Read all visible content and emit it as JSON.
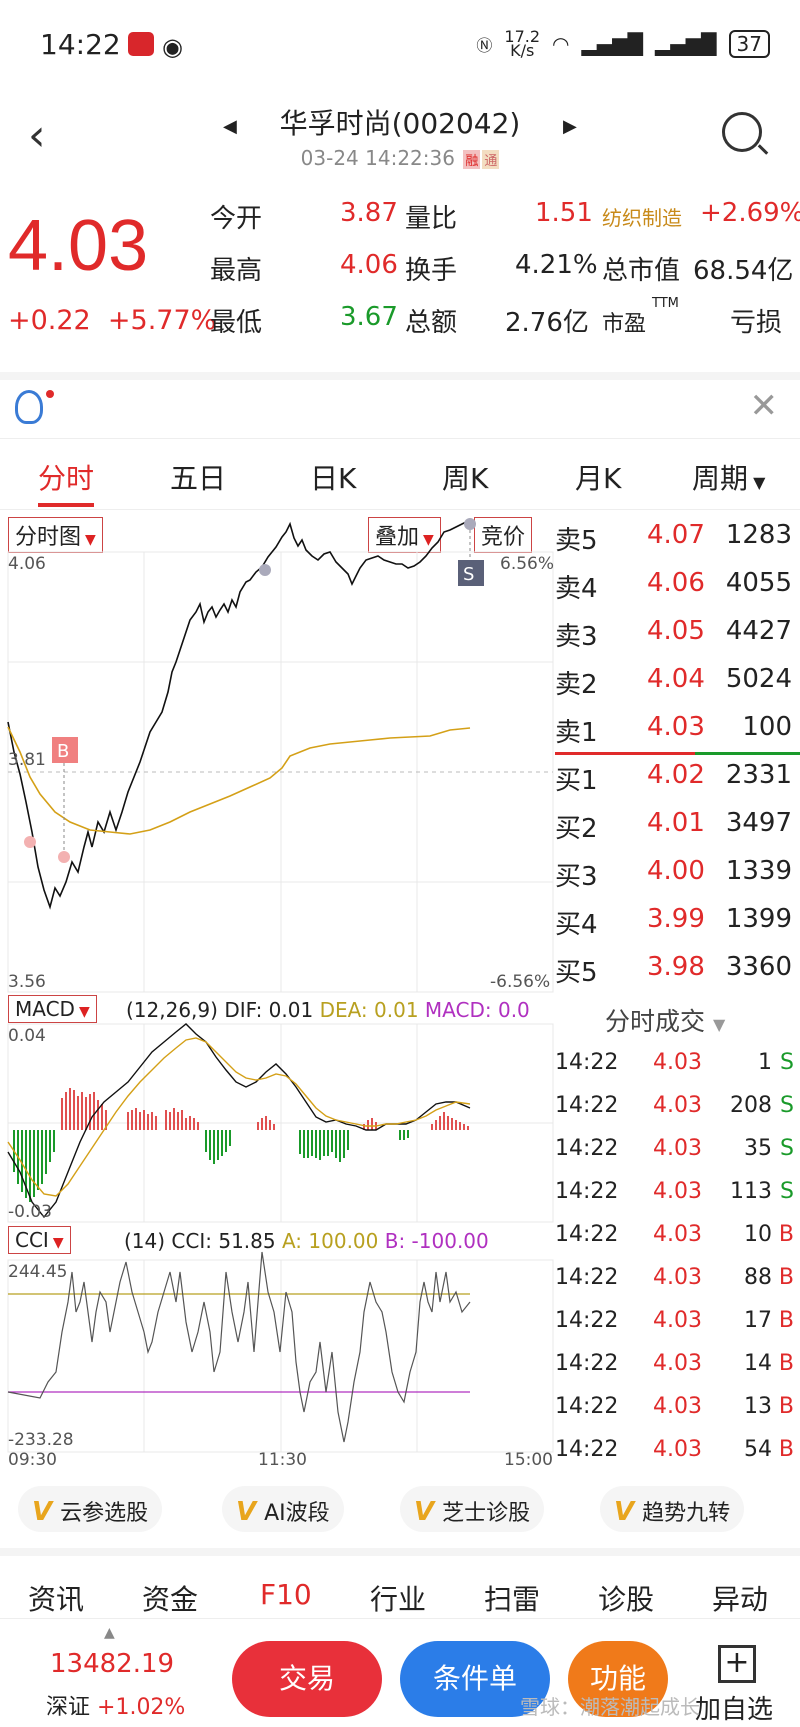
{
  "status": {
    "time": "14:22",
    "net_speed_top": "17.2",
    "net_speed_unit": "K/s",
    "battery": "37"
  },
  "header": {
    "title": "华孚时尚(002042)",
    "datetime": "03-24 14:22:36",
    "tag1": "融",
    "tag2": "通"
  },
  "quote": {
    "price": "4.03",
    "change": "+0.22",
    "change_pct": "+5.77%",
    "rows": [
      {
        "l1": "今开",
        "v1": "3.87",
        "l2": "量比",
        "v2": "1.51",
        "l3": "纺织制造",
        "v3": "+2.69%"
      },
      {
        "l1": "最高",
        "v1": "4.06",
        "l2": "换手",
        "v2": "4.21%",
        "l3": "总市值",
        "v3": "68.54亿"
      },
      {
        "l1": "最低",
        "v1": "3.67",
        "l2": "总额",
        "v2": "2.76亿",
        "l3": "市盈",
        "l3sup": "TTM",
        "v3": "亏损"
      }
    ]
  },
  "tabs": [
    "分时",
    "五日",
    "日K",
    "周K",
    "月K",
    "周期"
  ],
  "chart": {
    "main_dropdown": "分时图",
    "overlay_dropdown": "叠加",
    "auction_button": "竞价",
    "price_high": "4.06",
    "price_mid": "3.81",
    "price_low": "3.56",
    "pct_high": "6.56%",
    "pct_low": "-6.56%",
    "buy_marker": "B",
    "sell_marker": "S",
    "macd_dropdown": "MACD",
    "macd_params": "(12,26,9)",
    "macd_dif": "DIF: 0.01",
    "macd_dea": "DEA: 0.01",
    "macd_val": "MACD: 0.0",
    "macd_top": "0.04",
    "macd_bottom": "-0.03",
    "cci_dropdown": "CCI",
    "cci_params": "(14)",
    "cci_val": "CCI: 51.85",
    "cci_a": "A: 100.00",
    "cci_b": "B: -100.00",
    "cci_top": "244.45",
    "cci_bottom": "-233.28",
    "time_start": "09:30",
    "time_mid": "11:30",
    "time_end": "15:00"
  },
  "book": [
    {
      "label": "卖5",
      "price": "4.07",
      "vol": "1283"
    },
    {
      "label": "卖4",
      "price": "4.06",
      "vol": "4055"
    },
    {
      "label": "卖3",
      "price": "4.05",
      "vol": "4427"
    },
    {
      "label": "卖2",
      "price": "4.04",
      "vol": "5024"
    },
    {
      "label": "卖1",
      "price": "4.03",
      "vol": "100"
    },
    {
      "label": "买1",
      "price": "4.02",
      "vol": "2331"
    },
    {
      "label": "买2",
      "price": "4.01",
      "vol": "3497"
    },
    {
      "label": "买3",
      "price": "4.00",
      "vol": "1339"
    },
    {
      "label": "买4",
      "price": "3.99",
      "vol": "1399"
    },
    {
      "label": "买5",
      "price": "3.98",
      "vol": "3360"
    }
  ],
  "trades_title": "分时成交",
  "trades": [
    {
      "time": "14:22",
      "price": "4.03",
      "vol": "1",
      "side": "S"
    },
    {
      "time": "14:22",
      "price": "4.03",
      "vol": "208",
      "side": "S"
    },
    {
      "time": "14:22",
      "price": "4.03",
      "vol": "35",
      "side": "S"
    },
    {
      "time": "14:22",
      "price": "4.03",
      "vol": "113",
      "side": "S"
    },
    {
      "time": "14:22",
      "price": "4.03",
      "vol": "10",
      "side": "B"
    },
    {
      "time": "14:22",
      "price": "4.03",
      "vol": "88",
      "side": "B"
    },
    {
      "time": "14:22",
      "price": "4.03",
      "vol": "17",
      "side": "B"
    },
    {
      "time": "14:22",
      "price": "4.03",
      "vol": "14",
      "side": "B"
    },
    {
      "time": "14:22",
      "price": "4.03",
      "vol": "13",
      "side": "B"
    },
    {
      "time": "14:22",
      "price": "4.03",
      "vol": "54",
      "side": "B"
    }
  ],
  "chips": [
    "云参选股",
    "AI波段",
    "芝士诊股",
    "趋势九转"
  ],
  "bottom_tabs": [
    "资讯",
    "资金",
    "F10",
    "行业",
    "扫雷",
    "诊股",
    "异动"
  ],
  "footer": {
    "index_value": "13482.19",
    "index_name": "深证",
    "index_change": "+1.02%",
    "trade": "交易",
    "condition": "条件单",
    "feature": "功能",
    "add": "加自选",
    "watermark": "雪球：潮落潮起成长"
  },
  "colors": {
    "up": "#e02a2a",
    "down": "#1a9a2a",
    "avg": "#d4a017",
    "macd_purple": "#b030c0"
  }
}
